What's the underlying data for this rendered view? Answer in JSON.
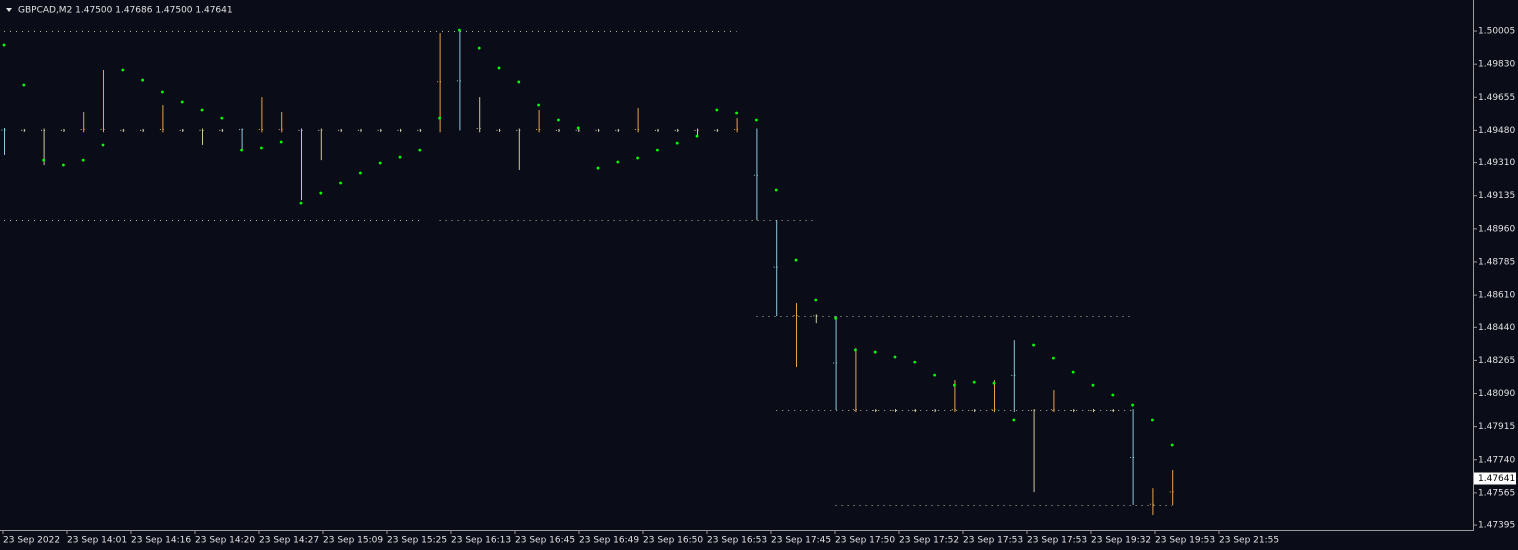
{
  "chart_data": {
    "type": "candlestick",
    "title": "GBPCAD,M2  1.47500 1.47686 1.47500 1.47641",
    "categories": [
      "23 Sep 2022",
      "23 Sep 14:01",
      "23 Sep 14:16",
      "23 Sep 14:20",
      "23 Sep 14:27",
      "23 Sep 15:09",
      "23 Sep 15:25",
      "23 Sep 16:13",
      "23 Sep 16:45",
      "23 Sep 16:49",
      "23 Sep 16:50",
      "23 Sep 16:53",
      "23 Sep 17:45",
      "23 Sep 17:50",
      "23 Sep 17:52",
      "23 Sep 17:53",
      "23 Sep 17:53",
      "23 Sep 19:32",
      "23 Sep 19:53",
      "23 Sep 21:55"
    ],
    "open": [
      1.49485,
      1.4948,
      1.4948,
      1.4948,
      1.4948,
      1.4948,
      1.4948,
      1.4948,
      1.4948,
      1.4948,
      1.4948,
      1.4948,
      1.4949,
      1.4948,
      1.4948,
      1.4948,
      1.4948,
      1.4948,
      1.4948,
      1.4948,
      1.4948,
      1.4948,
      1.4948,
      1.49994,
      1.4949,
      1.4948,
      1.4948,
      1.4948,
      1.4948,
      1.4948,
      1.4948,
      1.4948,
      1.4948,
      1.4948,
      1.4948,
      1.4948,
      1.4948,
      1.4948,
      1.4948,
      1.49006,
      1.48499,
      1.485,
      1.48499,
      1.48,
      1.48,
      1.48,
      1.48,
      1.48,
      1.48,
      1.48,
      1.48,
      1.48372,
      1.48,
      1.48,
      1.48,
      1.48,
      1.48,
      1.48003,
      1.475,
      1.475
    ],
    "high": [
      1.49493,
      1.49488,
      1.4949,
      1.49488,
      1.49577,
      1.49799,
      1.49488,
      1.49488,
      1.49614,
      1.49488,
      1.4949,
      1.49488,
      1.4949,
      1.49656,
      1.49577,
      1.4949,
      1.4949,
      1.49488,
      1.49488,
      1.49488,
      1.49488,
      1.49488,
      1.49994,
      1.5001,
      1.49656,
      1.49488,
      1.4949,
      1.49588,
      1.49488,
      1.49488,
      1.49488,
      1.49488,
      1.49598,
      1.49488,
      1.49488,
      1.4949,
      1.49488,
      1.49545,
      1.4949,
      1.49006,
      1.48568,
      1.48508,
      1.48499,
      1.4833,
      1.48008,
      1.48008,
      1.48008,
      1.48008,
      1.48161,
      1.48008,
      1.48161,
      1.48372,
      1.48008,
      1.48108,
      1.48008,
      1.48008,
      1.48008,
      1.48008,
      1.4759,
      1.47686
    ],
    "low": [
      1.4935,
      1.49472,
      1.49297,
      1.49472,
      1.4947,
      1.4947,
      1.49472,
      1.49472,
      1.4947,
      1.49472,
      1.49403,
      1.49472,
      1.49376,
      1.4947,
      1.4947,
      1.49112,
      1.49323,
      1.49472,
      1.49472,
      1.49472,
      1.49472,
      1.49472,
      1.4947,
      1.4948,
      1.4947,
      1.49472,
      1.49271,
      1.4947,
      1.49472,
      1.49472,
      1.49472,
      1.49472,
      1.4947,
      1.49472,
      1.49472,
      1.4945,
      1.49472,
      1.4947,
      1.49006,
      1.48499,
      1.4823,
      1.48462,
      1.48003,
      1.47992,
      1.47992,
      1.47992,
      1.47992,
      1.47992,
      1.47992,
      1.47992,
      1.47992,
      1.47992,
      1.47569,
      1.47992,
      1.47992,
      1.47992,
      1.47992,
      1.47501,
      1.47448,
      1.475
    ],
    "close": [
      1.4948,
      1.4948,
      1.4948,
      1.4948,
      1.4949,
      1.4949,
      1.4948,
      1.4948,
      1.4949,
      1.4948,
      1.4948,
      1.4948,
      1.4948,
      1.4949,
      1.4949,
      1.4948,
      1.4948,
      1.4948,
      1.4948,
      1.4948,
      1.4948,
      1.4948,
      1.49994,
      1.4949,
      1.4949,
      1.4948,
      1.4948,
      1.4949,
      1.4948,
      1.4948,
      1.4948,
      1.4948,
      1.4949,
      1.4948,
      1.4948,
      1.4948,
      1.4948,
      1.4949,
      1.49006,
      1.4851,
      1.48505,
      1.485,
      1.48003,
      1.4801,
      1.48,
      1.48,
      1.48,
      1.48,
      1.4801,
      1.48,
      1.4801,
      1.48,
      1.48,
      1.4801,
      1.48,
      1.48,
      1.48,
      1.47501,
      1.4751,
      1.47641
    ],
    "sar": [
      1.49931,
      1.4972,
      1.49323,
      1.49297,
      1.49323,
      1.49403,
      1.49799,
      1.49746,
      1.49683,
      1.4963,
      1.49588,
      1.49545,
      1.49376,
      1.49387,
      1.49419,
      1.49096,
      1.49149,
      1.49202,
      1.49255,
      1.49308,
      1.49339,
      1.49376,
      1.49545,
      1.5001,
      1.49915,
      1.4981,
      1.49736,
      1.49614,
      1.49535,
      1.49493,
      1.49281,
      1.49313,
      1.49334,
      1.49376,
      1.49413,
      1.4945,
      1.49588,
      1.49572,
      1.49535,
      1.49165,
      1.48795,
      1.48584,
      1.48488,
      1.4832,
      1.48309,
      1.48283,
      1.48256,
      1.48187,
      1.48134,
      1.4815,
      1.48145,
      1.4795,
      1.48346,
      1.48277,
      1.48203,
      1.48134,
      1.48082,
      1.48029,
      1.4795,
      1.47818
    ],
    "levels": [
      {
        "price": 1.50005,
        "from": 0,
        "to": 37
      },
      {
        "price": 1.49006,
        "from": 0,
        "to": 21
      },
      {
        "price": 1.49006,
        "from": 22,
        "to": 41
      },
      {
        "price": 1.48499,
        "from": 38,
        "to": 57
      },
      {
        "price": 1.48003,
        "from": 39,
        "to": 57
      },
      {
        "price": 1.47501,
        "from": 42,
        "to": 59
      }
    ],
    "colors": {
      "up": "#e8a24a",
      "down": "#8ec8dc",
      "flat": "#c8c8a0",
      "sar": "#00ff00",
      "level": "#b8b890"
    },
    "ylim": [
      1.47369,
      1.50169
    ],
    "yticks": [
      1.50005,
      {
        "value": 1.4983,
        "label": "1.49830"
      },
      1.49655,
      {
        "value": 1.4948,
        "label": "1.49480"
      },
      {
        "value": 1.4931,
        "label": "1.49310"
      },
      1.49135,
      {
        "value": 1.4896,
        "label": "1.48960"
      },
      1.48785,
      {
        "value": 1.4861,
        "label": "1.48610"
      },
      {
        "value": 1.4844,
        "label": "1.48440"
      },
      1.48265,
      {
        "value": 1.4809,
        "label": "1.48090"
      },
      1.47915,
      {
        "value": 1.4774,
        "label": "1.47740"
      },
      1.47565,
      1.47395
    ]
  }
}
